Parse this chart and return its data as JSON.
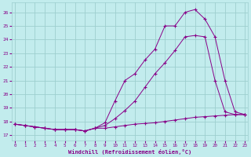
{
  "xlabel": "Windchill (Refroidissement éolien,°C)",
  "ylabel": "",
  "bg_color": "#c2eced",
  "grid_color": "#9dcfcf",
  "line_color": "#880088",
  "marker": "+",
  "x_ticks": [
    0,
    1,
    2,
    3,
    4,
    5,
    6,
    7,
    8,
    9,
    10,
    11,
    12,
    13,
    14,
    15,
    16,
    17,
    18,
    19,
    20,
    21,
    22,
    23
  ],
  "y_ticks": [
    17,
    18,
    19,
    20,
    21,
    22,
    23,
    24,
    25,
    26
  ],
  "xlim": [
    -0.3,
    23.3
  ],
  "ylim": [
    16.6,
    26.7
  ],
  "line1_x": [
    0,
    1,
    2,
    3,
    4,
    5,
    6,
    7,
    8,
    9,
    10,
    11,
    12,
    13,
    14,
    15,
    16,
    17,
    18,
    19,
    20,
    21,
    22,
    23
  ],
  "line1_y": [
    17.8,
    17.7,
    17.6,
    17.5,
    17.4,
    17.4,
    17.4,
    17.3,
    17.5,
    17.5,
    17.6,
    17.7,
    17.8,
    17.85,
    17.9,
    18.0,
    18.1,
    18.2,
    18.3,
    18.35,
    18.4,
    18.45,
    18.5,
    18.5
  ],
  "line2_x": [
    0,
    1,
    2,
    3,
    4,
    5,
    6,
    7,
    8,
    9,
    10,
    11,
    12,
    13,
    14,
    15,
    16,
    17,
    18,
    19,
    20,
    21,
    22,
    23
  ],
  "line2_y": [
    17.8,
    17.7,
    17.6,
    17.5,
    17.4,
    17.4,
    17.4,
    17.3,
    17.5,
    17.9,
    19.5,
    21.0,
    21.5,
    22.5,
    23.3,
    25.0,
    25.0,
    26.0,
    26.2,
    25.5,
    24.2,
    21.0,
    18.7,
    18.5
  ],
  "line3_x": [
    0,
    1,
    2,
    3,
    4,
    5,
    6,
    7,
    8,
    9,
    10,
    11,
    12,
    13,
    14,
    15,
    16,
    17,
    18,
    19,
    20,
    21,
    22,
    23
  ],
  "line3_y": [
    17.8,
    17.7,
    17.6,
    17.5,
    17.4,
    17.4,
    17.4,
    17.3,
    17.5,
    17.7,
    18.2,
    18.8,
    19.5,
    20.5,
    21.5,
    22.3,
    23.2,
    24.2,
    24.3,
    24.2,
    21.0,
    18.7,
    18.5,
    18.5
  ]
}
